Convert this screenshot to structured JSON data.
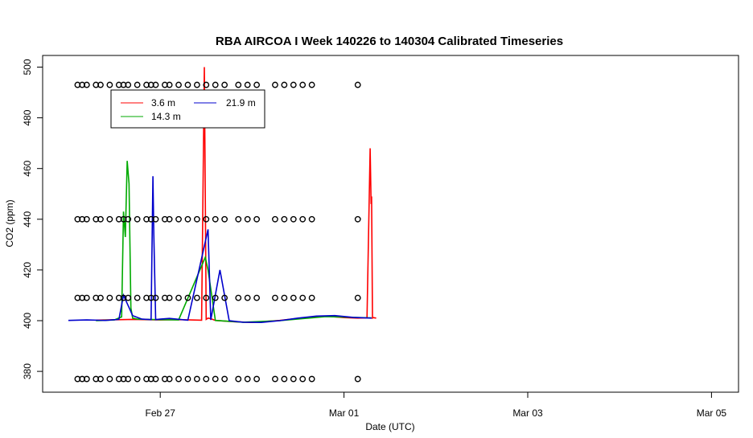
{
  "chart_data": {
    "type": "line",
    "title": "RBA AIRCOA I  Week 140226 to 140304  Calibrated Timeseries",
    "xlabel": "Date (UTC)",
    "ylabel": "CO2 (ppm)",
    "x_ticks": [
      "Feb 27",
      "Mar 01",
      "Mar 03",
      "Mar 05"
    ],
    "x_tick_days": [
      1,
      3,
      5,
      7
    ],
    "y_ticks": [
      380,
      400,
      420,
      440,
      460,
      480,
      500
    ],
    "xlim_days": [
      0.0,
      7.0
    ],
    "ylim": [
      371,
      504
    ],
    "legend": {
      "position": "top-left",
      "entries": [
        "3.6 m",
        "14.3 m",
        "21.9 m"
      ]
    },
    "series": [
      {
        "name": "3.6 m",
        "color": "#ff0000",
        "x_days": [
          0.3,
          0.7,
          1.0,
          1.2,
          1.45,
          1.48,
          1.5,
          1.52,
          1.55,
          1.6,
          1.8,
          2.0,
          2.3,
          2.6,
          2.8,
          3.0,
          3.15,
          3.25,
          3.285,
          3.295,
          3.3,
          3.31,
          3.32,
          3.35
        ],
        "values": [
          400.2,
          400.5,
          400.3,
          400.4,
          400.2,
          500,
          400.5,
          401,
          400.8,
          400.1,
          399.6,
          399.3,
          400.1,
          401.3,
          401.8,
          401.2,
          401.0,
          401.1,
          468,
          446,
          449,
          401.0,
          401.2,
          401.0
        ]
      },
      {
        "name": "14.3 m",
        "color": "#00aa00",
        "x_days": [
          0.3,
          0.5,
          0.58,
          0.6,
          0.62,
          0.64,
          0.66,
          0.68,
          0.7,
          0.75,
          0.95,
          1.2,
          1.49,
          1.52,
          1.6,
          1.9,
          2.3,
          2.8,
          3.3
        ],
        "values": [
          400.0,
          400.3,
          401.5,
          443,
          433,
          463,
          454,
          405,
          401,
          400.6,
          400.4,
          400.3,
          425,
          420,
          400.1,
          399.4,
          400.0,
          401.6,
          401.1
        ]
      },
      {
        "name": "21.9 m",
        "color": "#0000cc",
        "x_days": [
          0.0,
          0.2,
          0.4,
          0.55,
          0.6,
          0.7,
          0.8,
          0.9,
          0.92,
          0.93,
          0.95,
          1.0,
          1.1,
          1.3,
          1.52,
          1.55,
          1.65,
          1.75,
          1.9,
          2.1,
          2.3,
          2.5,
          2.7,
          2.9,
          3.1,
          3.3
        ],
        "values": [
          400.1,
          400.3,
          400.1,
          400.5,
          410,
          402,
          400.6,
          400.4,
          457,
          434,
          400.4,
          400.6,
          400.9,
          400.2,
          436,
          400.3,
          420,
          400.0,
          399.4,
          399.3,
          400.0,
          401.0,
          401.8,
          402.0,
          401.3,
          401.0
        ]
      }
    ],
    "calibration_points": {
      "marker": "open-circle",
      "levels": [
        377,
        409,
        440,
        493
      ],
      "x_days": [
        0.1,
        0.15,
        0.2,
        0.3,
        0.35,
        0.45,
        0.55,
        0.6,
        0.65,
        0.75,
        0.85,
        0.9,
        0.95,
        1.05,
        1.1,
        1.2,
        1.3,
        1.4,
        1.5,
        1.6,
        1.7,
        1.85,
        1.95,
        2.05,
        2.25,
        2.35,
        2.45,
        2.55,
        2.65,
        3.15
      ]
    }
  }
}
